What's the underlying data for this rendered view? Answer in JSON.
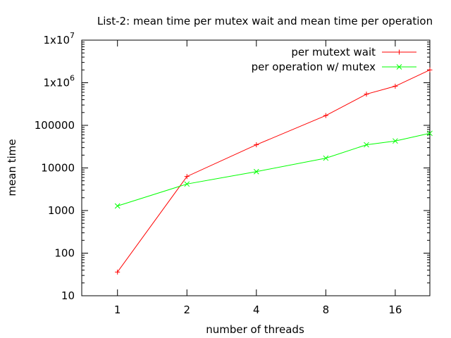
{
  "chart_data": {
    "type": "line",
    "title": "List-2: mean time per mutex wait and mean time per operation",
    "xlabel": "number of threads",
    "ylabel": "mean time",
    "xscale": "log2",
    "yscale": "log10",
    "xlim": [
      0.7,
      22.6
    ],
    "ylim": [
      10,
      10000000
    ],
    "x_ticks": [
      {
        "value": 1,
        "label": "1"
      },
      {
        "value": 2,
        "label": "2"
      },
      {
        "value": 4,
        "label": "4"
      },
      {
        "value": 8,
        "label": "8"
      },
      {
        "value": 16,
        "label": "16"
      }
    ],
    "y_ticks": [
      {
        "value": 10,
        "label": "10"
      },
      {
        "value": 100,
        "label": "100"
      },
      {
        "value": 1000,
        "label": "1000"
      },
      {
        "value": 10000,
        "label": "10000"
      },
      {
        "value": 100000,
        "label": "100000"
      },
      {
        "value": 1000000,
        "base": "1x10",
        "exp": "6"
      },
      {
        "value": 10000000,
        "base": "1x10",
        "exp": "7"
      }
    ],
    "grid": false,
    "legend_position": "top-right",
    "series": [
      {
        "name": "per mutext wait",
        "color": "#ff0000",
        "marker": "plus",
        "x": [
          1,
          2,
          4,
          8,
          12,
          16,
          22.6
        ],
        "y": [
          36,
          6300,
          35000,
          170000,
          540000,
          830000,
          2000000
        ]
      },
      {
        "name": "per operation w/ mutex",
        "color": "#00ff00",
        "marker": "x",
        "x": [
          1,
          2,
          4,
          8,
          12,
          16,
          22.6
        ],
        "y": [
          1280,
          4200,
          8200,
          17000,
          35000,
          43000,
          65000
        ]
      }
    ]
  }
}
